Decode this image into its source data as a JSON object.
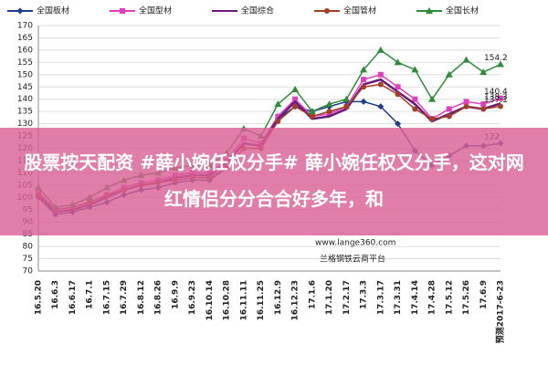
{
  "chart_data": {
    "type": "line",
    "categories": [
      "16.5.20",
      "16.6.3",
      "16.6.17",
      "16.7.1",
      "16.7.15",
      "16.7.29",
      "16.8.12",
      "16.8.26",
      "16.9.9",
      "16.9.23",
      "16.10.14",
      "16.10.28",
      "16.11.11",
      "16.11.25",
      "16.12.9",
      "16.12.23",
      "17.1.6",
      "17.1.20",
      "17.2.17",
      "17.3.3",
      "17.3.17",
      "17.3.31",
      "17.4.14",
      "17.4.28",
      "17.5.12",
      "17.5.26",
      "17.6.9",
      "预测2017-6-23"
    ],
    "series": [
      {
        "name": "全国板材",
        "color": "#1f3c88",
        "marker": "diamond",
        "values": [
          100,
          93,
          94,
          96,
          98,
          101,
          103,
          104,
          106,
          107,
          107,
          112,
          120,
          120,
          132,
          137,
          135,
          137,
          139,
          139,
          137,
          130,
          119,
          113,
          117,
          121,
          121,
          122
        ]
      },
      {
        "name": "全国型材",
        "color": "#e040c0",
        "marker": "square",
        "values": [
          102,
          95,
          96,
          98,
          101,
          104,
          106,
          107,
          109,
          110,
          110,
          115,
          124,
          122,
          133,
          140,
          133,
          134,
          137,
          148,
          150,
          145,
          140,
          132,
          136,
          139,
          138,
          140.4
        ]
      },
      {
        "name": "全国综合",
        "color": "#6a1b7a",
        "marker": "none",
        "values": [
          101,
          94,
          95,
          97,
          100,
          103,
          105,
          106,
          108,
          109,
          109,
          114,
          122,
          121,
          132,
          139,
          132,
          133,
          136,
          146,
          148,
          143,
          138,
          131,
          134,
          137,
          136,
          138.3
        ]
      },
      {
        "name": "全国管材",
        "color": "#a0402a",
        "marker": "circle",
        "values": [
          101,
          95,
          96,
          98,
          101,
          103,
          105,
          106,
          107,
          108,
          108,
          112,
          120,
          120,
          131,
          137,
          133,
          135,
          137,
          145,
          146,
          142,
          136,
          132,
          133,
          137,
          136,
          137.1
        ]
      },
      {
        "name": "全国长材",
        "color": "#2e8b3a",
        "marker": "triangle",
        "values": [
          104,
          96,
          97,
          100,
          104,
          107,
          109,
          110,
          112,
          113,
          113,
          118,
          128,
          125,
          138,
          144,
          135,
          138,
          140,
          152,
          160,
          155,
          152,
          140,
          150,
          156,
          151,
          154.2
        ]
      }
    ],
    "ylim": [
      70,
      170
    ],
    "yticks": [
      70,
      75,
      80,
      85,
      90,
      95,
      100,
      105,
      110,
      115,
      120,
      125,
      130,
      135,
      140,
      145,
      150,
      155,
      160,
      165,
      170
    ],
    "grid": true,
    "legend": "top",
    "annotations": [
      "www.lange360.com",
      "兰格钢铁云商平台"
    ]
  },
  "overlay": {
    "text": "股票按天配资 #薛小婉任权分手# 薛小婉任权又分手，这对网红情侣分分合合好多年，和"
  }
}
